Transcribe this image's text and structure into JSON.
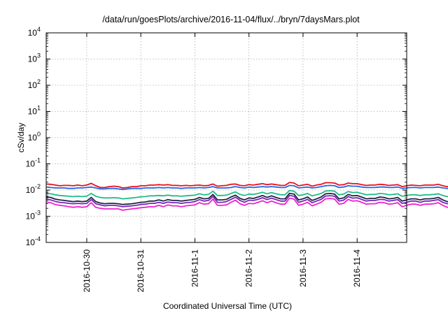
{
  "chart_data": {
    "type": "line",
    "title": "/data/run/goesPlots/archive/2016-11-04/flux/../bryn/7daysMars.plot",
    "xlabel": "Coordinated Universal Time (UTC)",
    "ylabel": "cSv/day",
    "yscale": "log",
    "ylim": [
      0.0001,
      10000
    ],
    "xlim": [
      "2016-10-29 06:00",
      "2016-11-04 22:00"
    ],
    "x_ticks": [
      "2016-10-30",
      "2016-10-31",
      "2016-11-1",
      "2016-11-2",
      "2016-11-3",
      "2016-11-4"
    ],
    "y_ticks": [
      {
        "base": "10",
        "exp": "-4"
      },
      {
        "base": "10",
        "exp": "-3"
      },
      {
        "base": "10",
        "exp": "-2"
      },
      {
        "base": "10",
        "exp": "-1"
      },
      {
        "base": "10",
        "exp": "0"
      },
      {
        "base": "10",
        "exp": "1"
      },
      {
        "base": "10",
        "exp": "2"
      },
      {
        "base": "10",
        "exp": "3"
      },
      {
        "base": "10",
        "exp": "4"
      }
    ],
    "grid": true,
    "x_time_step_hours": 2,
    "series": [
      {
        "color": "#e8101a",
        "values": [
          0.017,
          0.0165,
          0.0155,
          0.0145,
          0.015,
          0.015,
          0.0145,
          0.0155,
          0.0145,
          0.0155,
          0.018,
          0.0145,
          0.0125,
          0.0125,
          0.0135,
          0.014,
          0.0135,
          0.012,
          0.0125,
          0.0135,
          0.0135,
          0.0145,
          0.0145,
          0.0155,
          0.0155,
          0.016,
          0.0155,
          0.016,
          0.015,
          0.015,
          0.0145,
          0.015,
          0.0145,
          0.015,
          0.0155,
          0.0145,
          0.015,
          0.017,
          0.014,
          0.0145,
          0.015,
          0.0165,
          0.017,
          0.015,
          0.0145,
          0.016,
          0.0155,
          0.0165,
          0.0175,
          0.016,
          0.017,
          0.016,
          0.015,
          0.015,
          0.0195,
          0.0185,
          0.0145,
          0.0155,
          0.0165,
          0.014,
          0.0155,
          0.0165,
          0.019,
          0.019,
          0.0185,
          0.0155,
          0.016,
          0.0185,
          0.0175,
          0.0175,
          0.016,
          0.015,
          0.0155,
          0.0155,
          0.0165,
          0.016,
          0.015,
          0.0155,
          0.016,
          0.0135,
          0.0145,
          0.0155,
          0.015,
          0.0145,
          0.0155,
          0.0155,
          0.0155,
          0.0165,
          0.0145,
          0.0135,
          0.0135,
          0.0155,
          0.0165,
          0.0155,
          0.0155,
          0.0145,
          0.0155,
          0.016,
          0.015,
          0.0165,
          0.0185,
          0.0185,
          0.0175,
          0.0175,
          0.0175,
          0.0165,
          0.0175,
          0.022,
          0.0165,
          0.0165,
          0.0225,
          0.02,
          0.0215,
          0.0175,
          0.0185,
          0.0205,
          0.0195,
          0.017,
          0.0185,
          0.022,
          0.021,
          0.0155,
          0.0175,
          0.016,
          0.0175,
          0.0185,
          0.021,
          0.0185,
          0.0175,
          0.0165,
          0.0145,
          0.0145,
          0.0155,
          0.0155,
          0.0175,
          0.0185,
          0.024,
          0.0235,
          0.0225,
          0.022,
          0.0215,
          0.0225,
          0.0225,
          0.0235,
          0.0235,
          0.0205,
          0.0205,
          0.021,
          0.0205,
          0.02,
          0.0185,
          0.0185,
          0.018,
          0.0215,
          0.021,
          0.022,
          0.02,
          0.0205,
          0.0215,
          0.021,
          0.0205,
          0.024,
          0.022,
          0.022,
          0.0235
        ]
      },
      {
        "color": "#2266ee",
        "values": [
          0.013,
          0.0125,
          0.012,
          0.012,
          0.012,
          0.0115,
          0.0115,
          0.012,
          0.012,
          0.0125,
          0.013,
          0.012,
          0.011,
          0.011,
          0.0115,
          0.0115,
          0.011,
          0.0105,
          0.011,
          0.0115,
          0.0115,
          0.0115,
          0.012,
          0.012,
          0.012,
          0.0125,
          0.012,
          0.0125,
          0.012,
          0.012,
          0.0115,
          0.012,
          0.012,
          0.012,
          0.0125,
          0.012,
          0.0125,
          0.0135,
          0.012,
          0.012,
          0.012,
          0.0125,
          0.0135,
          0.0125,
          0.012,
          0.013,
          0.0125,
          0.013,
          0.0135,
          0.013,
          0.0135,
          0.013,
          0.0125,
          0.0125,
          0.015,
          0.0145,
          0.012,
          0.0125,
          0.013,
          0.012,
          0.0125,
          0.0135,
          0.0145,
          0.015,
          0.0145,
          0.0125,
          0.013,
          0.0145,
          0.014,
          0.014,
          0.013,
          0.0125,
          0.0125,
          0.0125,
          0.013,
          0.013,
          0.0125,
          0.0125,
          0.013,
          0.0115,
          0.012,
          0.0125,
          0.0125,
          0.012,
          0.0125,
          0.0125,
          0.0125,
          0.013,
          0.012,
          0.0115,
          0.0115,
          0.0125,
          0.013,
          0.0125,
          0.0125,
          0.012,
          0.0125,
          0.013,
          0.0125,
          0.013,
          0.0145,
          0.0145,
          0.014,
          0.014,
          0.014,
          0.013,
          0.014,
          0.0165,
          0.013,
          0.013,
          0.017,
          0.0155,
          0.0165,
          0.014,
          0.0145,
          0.016,
          0.015,
          0.0135,
          0.0145,
          0.017,
          0.016,
          0.0125,
          0.014,
          0.013,
          0.014,
          0.0145,
          0.016,
          0.0145,
          0.014,
          0.013,
          0.012,
          0.012,
          0.0125,
          0.0125,
          0.014,
          0.0145,
          0.0175,
          0.0175,
          0.017,
          0.0165,
          0.0165,
          0.017,
          0.017,
          0.0175,
          0.0175,
          0.016,
          0.016,
          0.016,
          0.016,
          0.0155,
          0.0145,
          0.0145,
          0.0145,
          0.0165,
          0.016,
          0.017,
          0.0155,
          0.016,
          0.0165,
          0.016,
          0.016,
          0.018,
          0.017,
          0.017,
          0.0175
        ]
      },
      {
        "color": "#22bb88",
        "values": [
          0.0075,
          0.0072,
          0.0066,
          0.0062,
          0.006,
          0.0058,
          0.0056,
          0.0058,
          0.0056,
          0.0058,
          0.0074,
          0.0058,
          0.0052,
          0.005,
          0.005,
          0.0051,
          0.005,
          0.0046,
          0.0048,
          0.005,
          0.0052,
          0.0055,
          0.0056,
          0.006,
          0.006,
          0.0062,
          0.006,
          0.0064,
          0.006,
          0.006,
          0.0058,
          0.006,
          0.0062,
          0.0064,
          0.0072,
          0.0066,
          0.0068,
          0.009,
          0.0062,
          0.0062,
          0.0064,
          0.0074,
          0.0085,
          0.0068,
          0.0062,
          0.007,
          0.0068,
          0.0074,
          0.0082,
          0.0072,
          0.008,
          0.0072,
          0.0066,
          0.0066,
          0.0096,
          0.009,
          0.0062,
          0.0066,
          0.0074,
          0.006,
          0.0066,
          0.0074,
          0.0092,
          0.0094,
          0.009,
          0.0066,
          0.007,
          0.0088,
          0.008,
          0.0082,
          0.0074,
          0.0066,
          0.0068,
          0.0068,
          0.0074,
          0.0072,
          0.0066,
          0.0068,
          0.0072,
          0.0058,
          0.0062,
          0.0066,
          0.0066,
          0.0062,
          0.0066,
          0.0066,
          0.0068,
          0.0072,
          0.0062,
          0.0056,
          0.0056,
          0.0066,
          0.0072,
          0.0066,
          0.0066,
          0.0062,
          0.0066,
          0.007,
          0.0066,
          0.0072,
          0.0086,
          0.0086,
          0.008,
          0.008,
          0.008,
          0.0072,
          0.008,
          0.011,
          0.0072,
          0.0072,
          0.0115,
          0.0098,
          0.0108,
          0.008,
          0.0086,
          0.0102,
          0.0094,
          0.0076,
          0.0088,
          0.0112,
          0.0105,
          0.0066,
          0.0078,
          0.007,
          0.0078,
          0.0086,
          0.0102,
          0.0086,
          0.0078,
          0.0072,
          0.0062,
          0.0062,
          0.0066,
          0.0066,
          0.0078,
          0.0086,
          0.0098,
          0.0095,
          0.009,
          0.0088,
          0.0086,
          0.0092,
          0.0092,
          0.0096,
          0.0096,
          0.0086,
          0.0086,
          0.0088,
          0.0086,
          0.0084,
          0.0078,
          0.0078,
          0.0076,
          0.0092,
          0.0088,
          0.0094,
          0.0084,
          0.0086,
          0.0092,
          0.0088,
          0.0086,
          0.0102,
          0.0094,
          0.0094,
          0.0098
        ]
      },
      {
        "color": "#222244",
        "values": [
          0.0055,
          0.0052,
          0.0045,
          0.0042,
          0.004,
          0.0038,
          0.0036,
          0.0038,
          0.0036,
          0.0038,
          0.0052,
          0.0036,
          0.0032,
          0.003,
          0.0031,
          0.0031,
          0.003,
          0.0028,
          0.0029,
          0.003,
          0.0032,
          0.0034,
          0.0035,
          0.0038,
          0.0038,
          0.0042,
          0.0038,
          0.0043,
          0.004,
          0.004,
          0.0038,
          0.004,
          0.0042,
          0.0044,
          0.0052,
          0.0046,
          0.0048,
          0.0068,
          0.0042,
          0.0042,
          0.0044,
          0.0054,
          0.0064,
          0.0048,
          0.0042,
          0.005,
          0.0048,
          0.0054,
          0.0062,
          0.0052,
          0.006,
          0.0052,
          0.0046,
          0.0046,
          0.0075,
          0.007,
          0.0042,
          0.0046,
          0.0054,
          0.004,
          0.0046,
          0.0054,
          0.0072,
          0.0074,
          0.007,
          0.0046,
          0.005,
          0.0068,
          0.006,
          0.0062,
          0.0054,
          0.0046,
          0.0048,
          0.0048,
          0.0054,
          0.0052,
          0.0046,
          0.0048,
          0.0052,
          0.0038,
          0.0042,
          0.0046,
          0.0046,
          0.0042,
          0.0046,
          0.0046,
          0.0048,
          0.0052,
          0.0042,
          0.0036,
          0.0036,
          0.0046,
          0.0052,
          0.0046,
          0.0046,
          0.0042,
          0.0046,
          0.005,
          0.0046,
          0.0052,
          0.0066,
          0.0066,
          0.006,
          0.006,
          0.006,
          0.0052,
          0.006,
          0.0088,
          0.0052,
          0.0052,
          0.0092,
          0.0076,
          0.0086,
          0.006,
          0.0066,
          0.008,
          0.0072,
          0.0056,
          0.0068,
          0.009,
          0.0083,
          0.0046,
          0.0058,
          0.005,
          0.0058,
          0.0066,
          0.008,
          0.0066,
          0.0058,
          0.0052,
          0.0042,
          0.0042,
          0.0046,
          0.0046,
          0.0058,
          0.0066,
          0.0076,
          0.0073,
          0.0068,
          0.0066,
          0.0064,
          0.007,
          0.007,
          0.0074,
          0.0074,
          0.0064,
          0.0064,
          0.0066,
          0.0064,
          0.0062,
          0.0056,
          0.0056,
          0.0054,
          0.007,
          0.0066,
          0.0072,
          0.0062,
          0.0064,
          0.007,
          0.0066,
          0.0064,
          0.008,
          0.0072,
          0.0072,
          0.0076
        ]
      },
      {
        "color": "#7722bb",
        "values": [
          0.0045,
          0.0042,
          0.0037,
          0.0034,
          0.0033,
          0.0031,
          0.003,
          0.0031,
          0.003,
          0.0031,
          0.0043,
          0.003,
          0.0027,
          0.0025,
          0.0026,
          0.0026,
          0.0025,
          0.0023,
          0.0024,
          0.0025,
          0.0026,
          0.0028,
          0.0029,
          0.0031,
          0.0031,
          0.0034,
          0.0031,
          0.0035,
          0.0033,
          0.0033,
          0.0031,
          0.0033,
          0.0034,
          0.0036,
          0.0043,
          0.0038,
          0.004,
          0.0057,
          0.0034,
          0.0034,
          0.0036,
          0.0044,
          0.0053,
          0.004,
          0.0034,
          0.0041,
          0.004,
          0.0044,
          0.0051,
          0.0043,
          0.0049,
          0.0043,
          0.0038,
          0.0038,
          0.0062,
          0.0058,
          0.0034,
          0.0038,
          0.0044,
          0.0033,
          0.0038,
          0.0044,
          0.0059,
          0.0061,
          0.0058,
          0.0038,
          0.0041,
          0.0056,
          0.0049,
          0.0051,
          0.0044,
          0.0038,
          0.004,
          0.004,
          0.0044,
          0.0043,
          0.0038,
          0.004,
          0.0043,
          0.0031,
          0.0034,
          0.0038,
          0.0038,
          0.0034,
          0.0038,
          0.0038,
          0.004,
          0.0043,
          0.0034,
          0.003,
          0.003,
          0.0038,
          0.0043,
          0.0038,
          0.0038,
          0.0034,
          0.0038,
          0.0041,
          0.0038,
          0.0043,
          0.0054,
          0.0054,
          0.0049,
          0.0049,
          0.0049,
          0.0043,
          0.0049,
          0.0073,
          0.0043,
          0.0043,
          0.0076,
          0.0063,
          0.0071,
          0.0049,
          0.0054,
          0.0066,
          0.0059,
          0.0046,
          0.0056,
          0.0074,
          0.0069,
          0.0038,
          0.0048,
          0.0041,
          0.0048,
          0.0054,
          0.0066,
          0.0054,
          0.0048,
          0.0043,
          0.0034,
          0.0034,
          0.0038,
          0.0038,
          0.0048,
          0.0054,
          0.0063,
          0.006,
          0.0056,
          0.0054,
          0.0053,
          0.0058,
          0.0058,
          0.0061,
          0.0061,
          0.0053,
          0.0053,
          0.0054,
          0.0053,
          0.0051,
          0.0046,
          0.0046,
          0.0044,
          0.0058,
          0.0054,
          0.0059,
          0.0051,
          0.0053,
          0.0058,
          0.0054,
          0.0053,
          0.0066,
          0.0059,
          0.0059,
          0.0063
        ]
      },
      {
        "color": "#ee22cc",
        "values": [
          0.0035,
          0.0033,
          0.0028,
          0.0026,
          0.0025,
          0.0023,
          0.0022,
          0.0023,
          0.0022,
          0.0023,
          0.0033,
          0.0022,
          0.002,
          0.0019,
          0.0019,
          0.0019,
          0.0019,
          0.0017,
          0.0018,
          0.0019,
          0.002,
          0.0021,
          0.0022,
          0.0023,
          0.0023,
          0.0026,
          0.0023,
          0.0027,
          0.0025,
          0.0025,
          0.0023,
          0.0025,
          0.0026,
          0.0027,
          0.0033,
          0.0029,
          0.003,
          0.0045,
          0.0026,
          0.0026,
          0.0027,
          0.0034,
          0.0041,
          0.003,
          0.0026,
          0.0031,
          0.003,
          0.0034,
          0.0039,
          0.0033,
          0.0038,
          0.0033,
          0.0029,
          0.0029,
          0.0049,
          0.0045,
          0.0026,
          0.0029,
          0.0034,
          0.0025,
          0.0029,
          0.0034,
          0.0046,
          0.0048,
          0.0045,
          0.0029,
          0.0031,
          0.0044,
          0.0038,
          0.0039,
          0.0034,
          0.0029,
          0.003,
          0.003,
          0.0034,
          0.0033,
          0.0029,
          0.003,
          0.0033,
          0.0023,
          0.0026,
          0.0029,
          0.0029,
          0.0026,
          0.0029,
          0.0029,
          0.003,
          0.0033,
          0.0026,
          0.0022,
          0.0022,
          0.0029,
          0.0033,
          0.0029,
          0.0029,
          0.0026,
          0.0029,
          0.0031,
          0.0029,
          0.0033,
          0.0042,
          0.0042,
          0.0038,
          0.0038,
          0.0038,
          0.0033,
          0.0038,
          0.0057,
          0.0033,
          0.0033,
          0.006,
          0.0049,
          0.0056,
          0.0038,
          0.0042,
          0.0052,
          0.0046,
          0.0035,
          0.0044,
          0.0058,
          0.0054,
          0.0029,
          0.0037,
          0.0031,
          0.0037,
          0.0042,
          0.0052,
          0.0042,
          0.0037,
          0.0033,
          0.0026,
          0.0026,
          0.0029,
          0.0029,
          0.0037,
          0.0042,
          0.0049,
          0.0047,
          0.0044,
          0.0042,
          0.0041,
          0.0045,
          0.0045,
          0.0048,
          0.0048,
          0.0041,
          0.0041,
          0.0042,
          0.0041,
          0.0039,
          0.0035,
          0.0035,
          0.0034,
          0.0045,
          0.0042,
          0.0046,
          0.0039,
          0.0041,
          0.0045,
          0.0042,
          0.0041,
          0.0052,
          0.0046,
          0.0046,
          0.0049
        ]
      }
    ]
  }
}
